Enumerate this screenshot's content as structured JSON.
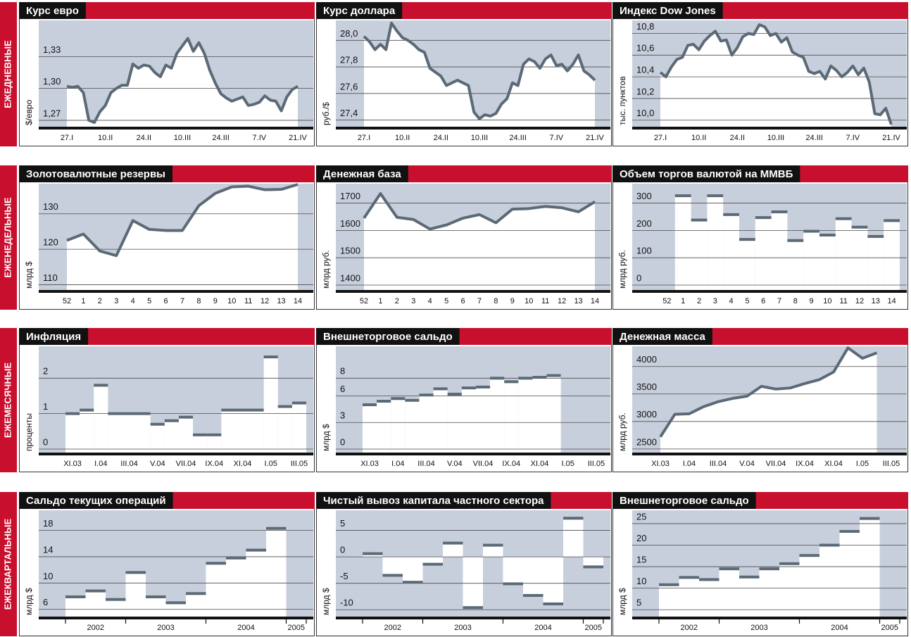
{
  "row_labels": [
    "ЕЖЕДНЕВНЫЕ",
    "ЕЖЕНЕДЕЛЬНЫЕ",
    "ЕЖЕМЕСЯЧНЫЕ",
    "ЕЖЕКВАРТАЛЬНЫЕ"
  ],
  "chart_data": [
    {
      "type": "area",
      "title": "Курс евро",
      "y_label": "$/евро",
      "color": "#5b6a76",
      "plot_color": "#c8cfdc",
      "grid": true,
      "ylim": [
        1.264,
        1.364
      ],
      "yticks": [
        {
          "value": 1.27,
          "label": "1,27"
        },
        {
          "value": 1.3,
          "label": "1,30"
        },
        {
          "value": 1.33,
          "label": "1,33"
        }
      ],
      "categories": [
        "27.I",
        null,
        null,
        null,
        null,
        null,
        null,
        "10.II",
        null,
        null,
        null,
        null,
        null,
        null,
        "24.II",
        null,
        null,
        null,
        null,
        null,
        null,
        "10.III",
        null,
        null,
        null,
        null,
        null,
        null,
        "24.III",
        null,
        null,
        null,
        null,
        null,
        null,
        "7.IV",
        null,
        null,
        null,
        null,
        null,
        null,
        "21.IV"
      ],
      "values": [
        1.302,
        1.301,
        1.302,
        1.296,
        1.27,
        1.268,
        1.278,
        1.284,
        1.296,
        1.3,
        1.303,
        1.303,
        1.323,
        1.319,
        1.322,
        1.321,
        1.315,
        1.311,
        1.322,
        1.319,
        1.333,
        1.34,
        1.347,
        1.335,
        1.343,
        1.333,
        1.317,
        1.305,
        1.295,
        1.291,
        1.288,
        1.29,
        1.292,
        1.284,
        1.285,
        1.287,
        1.293,
        1.289,
        1.288,
        1.279,
        1.292,
        1.299,
        1.302
      ]
    },
    {
      "type": "area",
      "title": "Курс доллара",
      "y_label": "руб./$",
      "color": "#5b6a76",
      "plot_color": "#c8cfdc",
      "grid": true,
      "ylim": [
        27.35,
        28.15
      ],
      "yticks": [
        {
          "value": 27.4,
          "label": "27,4"
        },
        {
          "value": 27.6,
          "label": "27,6"
        },
        {
          "value": 27.8,
          "label": "27,8"
        },
        {
          "value": 28.0,
          "label": "28,0"
        }
      ],
      "categories": [
        "27.I",
        null,
        null,
        null,
        null,
        null,
        null,
        "10.II",
        null,
        null,
        null,
        null,
        null,
        null,
        "24.II",
        null,
        null,
        null,
        null,
        null,
        null,
        "10.III",
        null,
        null,
        null,
        null,
        null,
        null,
        "24.III",
        null,
        null,
        null,
        null,
        null,
        null,
        "7.IV",
        null,
        null,
        null,
        null,
        null,
        null,
        "21.IV"
      ],
      "values": [
        28.03,
        27.99,
        27.93,
        27.97,
        27.93,
        28.13,
        28.07,
        28.02,
        28.0,
        27.97,
        27.93,
        27.91,
        27.79,
        27.76,
        27.73,
        27.66,
        27.68,
        27.7,
        27.68,
        27.66,
        27.46,
        27.41,
        27.44,
        27.43,
        27.45,
        27.52,
        27.56,
        27.68,
        27.66,
        27.82,
        27.86,
        27.84,
        27.79,
        27.86,
        27.89,
        27.81,
        27.82,
        27.77,
        27.82,
        27.89,
        27.77,
        27.74,
        27.7
      ]
    },
    {
      "type": "area",
      "title": "Индекс Dow Jones",
      "y_label": "тыс. пунктов",
      "color": "#5b6a76",
      "plot_color": "#c8cfdc",
      "grid": true,
      "ylim": [
        9.94,
        10.92
      ],
      "yticks": [
        {
          "value": 10.0,
          "label": "10,0"
        },
        {
          "value": 10.2,
          "label": "10,2"
        },
        {
          "value": 10.4,
          "label": "10,4"
        },
        {
          "value": 10.6,
          "label": "10,6"
        },
        {
          "value": 10.8,
          "label": "10,8"
        }
      ],
      "categories": [
        "27.I",
        null,
        null,
        null,
        null,
        null,
        null,
        "10.II",
        null,
        null,
        null,
        null,
        null,
        null,
        "24.II",
        null,
        null,
        null,
        null,
        null,
        null,
        "10.III",
        null,
        null,
        null,
        null,
        null,
        null,
        "24.III",
        null,
        null,
        null,
        null,
        null,
        null,
        "7.IV",
        null,
        null,
        null,
        null,
        null,
        null,
        "21.IV"
      ],
      "values": [
        10.44,
        10.4,
        10.49,
        10.56,
        10.58,
        10.69,
        10.7,
        10.65,
        10.73,
        10.78,
        10.82,
        10.73,
        10.74,
        10.6,
        10.67,
        10.77,
        10.8,
        10.79,
        10.88,
        10.86,
        10.78,
        10.8,
        10.72,
        10.76,
        10.63,
        10.6,
        10.58,
        10.45,
        10.43,
        10.45,
        10.38,
        10.5,
        10.46,
        10.4,
        10.44,
        10.5,
        10.42,
        10.48,
        10.35,
        10.06,
        10.05,
        10.11,
        9.96
      ]
    },
    {
      "type": "area",
      "title": "Золотовалютные резервы",
      "y_label": "млрд $",
      "color": "#5b6a76",
      "plot_color": "#c8cfdc",
      "grid": true,
      "ylim": [
        108.5,
        138.5
      ],
      "yticks": [
        110,
        120,
        130
      ],
      "categories": [
        "52",
        "1",
        "2",
        "3",
        "4",
        "5",
        "6",
        "7",
        "8",
        "9",
        "10",
        "11",
        "12",
        "13",
        "14"
      ],
      "values": [
        122.5,
        124.3,
        119.5,
        118.2,
        128.1,
        125.6,
        125.3,
        125.3,
        132.3,
        135.8,
        137.6,
        137.8,
        136.8,
        136.9,
        138.3
      ]
    },
    {
      "type": "area",
      "title": "Денежная база",
      "y_label": "млрд руб.",
      "color": "#5b6a76",
      "plot_color": "#c8cfdc",
      "grid": true,
      "ylim": [
        1382,
        1771
      ],
      "yticks": [
        1400,
        1500,
        1600,
        1700
      ],
      "categories": [
        "52",
        "1",
        "2",
        "3",
        "4",
        "5",
        "6",
        "7",
        "8",
        "9",
        "10",
        "11",
        "12",
        "13",
        "14"
      ],
      "values": [
        1645,
        1735,
        1648,
        1640,
        1605,
        1620,
        1645,
        1658,
        1628,
        1678,
        1680,
        1688,
        1683,
        1668,
        1705
      ]
    },
    {
      "type": "bar",
      "title": "Объем торгов валютой на ММВБ",
      "y_label": "млрд руб.",
      "color": "#5b6a76",
      "plot_color": "#c8cfdc",
      "grid": true,
      "ylim": [
        -18,
        371
      ],
      "yticks": [
        0,
        100,
        200,
        300
      ],
      "categories": [
        "52",
        "1",
        "2",
        "3",
        "4",
        "5",
        "6",
        "7",
        "8",
        "9",
        "10",
        "11",
        "12",
        "13",
        "14"
      ],
      "values": [
        null,
        327,
        238,
        327,
        258,
        167,
        247,
        268,
        163,
        197,
        183,
        243,
        212,
        178,
        236
      ]
    },
    {
      "type": "bar",
      "title": "Инфляция",
      "y_label": "проценты",
      "color": "#5b6a76",
      "plot_color": "#c8cfdc",
      "grid": true,
      "ylim": [
        -0.1,
        2.9
      ],
      "yticks": [
        0,
        1,
        2
      ],
      "categories": [
        "XI.03",
        null,
        "I.04",
        null,
        "III.04",
        null,
        "V.04",
        null,
        "VII.04",
        null,
        "IX.04",
        null,
        "XI.04",
        null,
        "I.05",
        null,
        "III.05"
      ],
      "values": [
        1.0,
        1.1,
        1.8,
        1.0,
        1.0,
        1.0,
        0.7,
        0.8,
        0.9,
        0.4,
        0.4,
        1.1,
        1.1,
        1.1,
        2.6,
        1.2,
        1.3
      ]
    },
    {
      "type": "bar",
      "title": "Внешнеторговое сальдо",
      "y_label": "млрд $",
      "color": "#5b6a76",
      "plot_color": "#c8cfdc",
      "grid": true,
      "ylim": [
        -0.4,
        11.6
      ],
      "yticks": [
        0,
        3,
        6,
        8
      ],
      "categories": [
        "XI.03",
        null,
        "I.04",
        null,
        "III.04",
        null,
        "V.04",
        null,
        "VII.04",
        null,
        "IX.04",
        null,
        "XI.04",
        null,
        "I.05",
        null,
        "III.05"
      ],
      "values": [
        5.0,
        5.4,
        5.7,
        5.5,
        6.1,
        6.8,
        6.2,
        6.9,
        7.0,
        8.0,
        7.6,
        8.0,
        8.1,
        8.3,
        null,
        null,
        null
      ]
    },
    {
      "type": "area",
      "title": "Денежная масса",
      "y_label": "млрд руб.",
      "color": "#5b6a76",
      "plot_color": "#c8cfdc",
      "grid": true,
      "ylim": [
        2434,
        4368
      ],
      "yticks": [
        2500,
        3000,
        3500,
        4000
      ],
      "categories": [
        "XI.03",
        null,
        "I.04",
        null,
        "III.04",
        null,
        "V.04",
        null,
        "VII.04",
        null,
        "IX.04",
        null,
        "XI.04",
        null,
        "I.05",
        null,
        "III.05"
      ],
      "values": [
        2720,
        3130,
        3140,
        3270,
        3360,
        3420,
        3460,
        3640,
        3590,
        3610,
        3690,
        3760,
        3900,
        4340,
        4150,
        4250,
        null
      ]
    },
    {
      "type": "bar",
      "title": "Сальдо текущих операций",
      "y_label": "млрд $",
      "color": "#5b6a76",
      "plot_color": "#c8cfdc",
      "grid": true,
      "ylim": [
        4.9,
        21.05
      ],
      "yticks": [
        6,
        10,
        14,
        18
      ],
      "groups": [
        {
          "label": "2002",
          "values": [
            7.9,
            8.8,
            7.5
          ]
        },
        {
          "label": "2003",
          "values": [
            11.6,
            7.9,
            7.0,
            8.4
          ]
        },
        {
          "label": "2004",
          "values": [
            13.0,
            13.8,
            15.0,
            18.3
          ]
        },
        {
          "label": "2005",
          "values": [
            null
          ]
        }
      ]
    },
    {
      "type": "bar",
      "title": "Чистый вывоз капитала частного сектора",
      "y_label": "млрд $",
      "color": "#5b6a76",
      "plot_color": "#c8cfdc",
      "grid": true,
      "ylim": [
        -11.3,
        8.8
      ],
      "yticks": [
        -10,
        -5,
        0,
        5
      ],
      "groups": [
        {
          "label": "2002",
          "values": [
            0.6,
            -3.5,
            -4.8
          ]
        },
        {
          "label": "2003",
          "values": [
            -1.4,
            2.6,
            -9.6,
            2.2
          ]
        },
        {
          "label": "2004",
          "values": [
            -5.1,
            -7.3,
            -8.9,
            7.3
          ]
        },
        {
          "label": "2005",
          "values": [
            -1.9
          ]
        }
      ]
    },
    {
      "type": "bar",
      "title": "Внешнеторговое сальдо",
      "y_label": "млрд $",
      "color": "#5b6a76",
      "plot_color": "#c8cfdc",
      "grid": true,
      "ylim": [
        3.4,
        28.1
      ],
      "yticks": [
        5,
        10,
        15,
        20,
        25
      ],
      "groups": [
        {
          "label": "2002",
          "values": [
            10.8,
            12.5,
            12.0
          ]
        },
        {
          "label": "2003",
          "values": [
            14.5,
            12.6,
            14.5,
            15.7
          ]
        },
        {
          "label": "2004",
          "values": [
            17.6,
            20.0,
            23.2,
            26.2
          ]
        },
        {
          "label": "2005",
          "values": [
            null
          ]
        }
      ]
    }
  ]
}
